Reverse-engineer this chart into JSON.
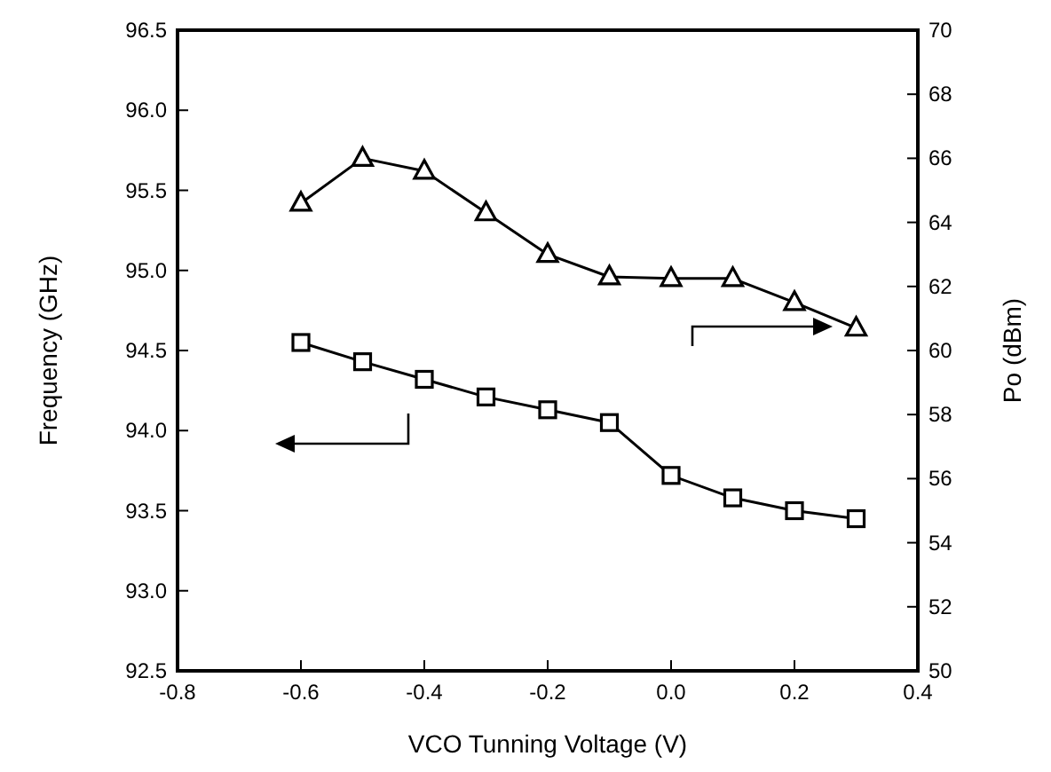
{
  "chart_data": {
    "type": "line",
    "xlabel": "VCO Tunning Voltage (V)",
    "ylabel": "Frequency (GHz)",
    "y2label": "Po (dBm)",
    "x": [
      -0.6,
      -0.5,
      -0.4,
      -0.3,
      -0.2,
      -0.1,
      0,
      0.1,
      0.2,
      0.3
    ],
    "series": [
      {
        "color": "#000000",
        "marker": "square",
        "values": [
          94.55,
          94.43,
          94.32,
          94.21,
          94.13,
          94.05,
          93.72,
          93.58,
          93.5,
          93.45
        ]
      },
      {
        "color": "#000000",
        "marker": "triangle",
        "axis": "y2",
        "values": [
          64.6,
          66.0,
          65.6,
          64.3,
          63.0,
          62.3,
          62.25,
          62.25,
          61.5,
          60.7
        ]
      }
    ],
    "xlim": [
      -0.8,
      0.4
    ],
    "xticks": [
      -0.8,
      -0.6,
      -0.4,
      -0.2,
      {
        "value": 0,
        "label": "0.0"
      },
      0.2,
      0.4
    ],
    "ylim": [
      92.5,
      96.5
    ],
    "yticks": [
      92.5,
      {
        "value": 93,
        "label": "93.0"
      },
      93.5,
      {
        "value": 94,
        "label": "94.0"
      },
      94.5,
      {
        "value": 95,
        "label": "95.0"
      },
      95.5,
      {
        "value": 96,
        "label": "96.0"
      },
      96.5
    ],
    "y2lim": [
      50,
      70
    ],
    "y2ticks": [
      50,
      52,
      54,
      56,
      58,
      60,
      62,
      64,
      66,
      68,
      70
    ],
    "grid": false,
    "line_style": "solid"
  }
}
